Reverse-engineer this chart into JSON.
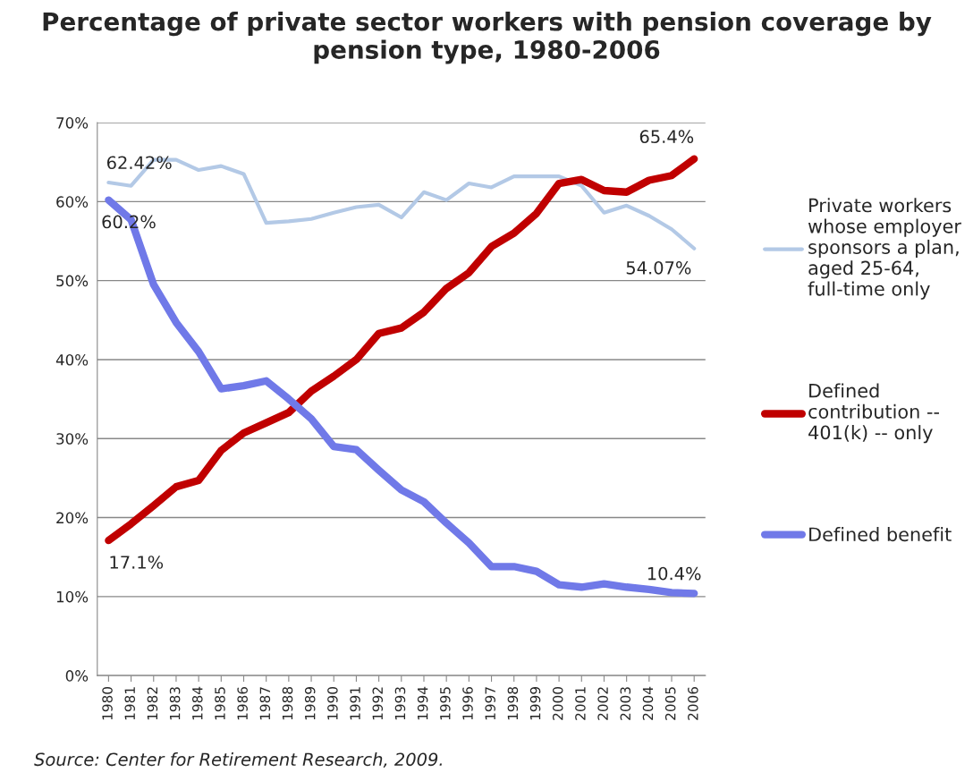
{
  "chart_data": {
    "type": "line",
    "title": "Percentage of private sector workers with pension coverage by pension type, 1980-2006",
    "categories": [
      "1980",
      "1981",
      "1982",
      "1983",
      "1984",
      "1985",
      "1986",
      "1987",
      "1988",
      "1989",
      "1990",
      "1991",
      "1992",
      "1993",
      "1994",
      "1995",
      "1996",
      "1997",
      "1998",
      "1999",
      "2000",
      "2001",
      "2002",
      "2003",
      "2004",
      "2005",
      "2006"
    ],
    "series": [
      {
        "name": "Private workers whose employer sponsors a plan, aged 25-64, full-time only",
        "color": "#b3c9e6",
        "values": [
          62.42,
          62.0,
          65.3,
          65.3,
          64.0,
          64.5,
          63.5,
          57.3,
          57.5,
          57.8,
          58.6,
          59.3,
          59.6,
          58.0,
          61.2,
          60.2,
          62.3,
          61.8,
          63.2,
          63.2,
          63.2,
          62.0,
          58.6,
          59.5,
          58.2,
          56.5,
          54.07
        ],
        "value_labels": [
          "62.42%",
          null,
          null,
          null,
          null,
          null,
          null,
          null,
          null,
          null,
          null,
          null,
          null,
          null,
          null,
          null,
          null,
          null,
          null,
          null,
          null,
          null,
          null,
          null,
          null,
          null,
          "54.07%"
        ]
      },
      {
        "name": "Defined contribution -- 401(k) -- only",
        "color": "#c00000",
        "values": [
          17.1,
          19.2,
          21.5,
          23.9,
          24.7,
          28.5,
          30.7,
          32.0,
          33.3,
          36.0,
          37.9,
          40.0,
          43.3,
          44.0,
          46.0,
          49.0,
          51.0,
          54.3,
          56.0,
          58.5,
          62.3,
          62.8,
          61.4,
          61.2,
          62.7,
          63.3,
          65.4
        ],
        "value_labels": [
          "17.1%",
          null,
          null,
          null,
          null,
          null,
          null,
          null,
          null,
          null,
          null,
          null,
          null,
          null,
          null,
          null,
          null,
          null,
          null,
          null,
          null,
          null,
          null,
          null,
          null,
          null,
          "65.4%"
        ]
      },
      {
        "name": "Defined benefit",
        "color": "#7079e8",
        "values": [
          60.2,
          57.7,
          49.5,
          44.7,
          41.0,
          36.3,
          36.7,
          37.3,
          35.0,
          32.5,
          29.0,
          28.6,
          26.0,
          23.5,
          22.0,
          19.3,
          16.8,
          13.8,
          13.8,
          13.2,
          11.5,
          11.2,
          11.6,
          11.2,
          10.9,
          10.5,
          10.4
        ],
        "value_labels": [
          "60.2%",
          null,
          null,
          null,
          null,
          null,
          null,
          null,
          null,
          null,
          null,
          null,
          null,
          null,
          null,
          null,
          null,
          null,
          null,
          null,
          null,
          null,
          null,
          null,
          null,
          null,
          "10.4%"
        ]
      }
    ],
    "ylim": [
      0,
      70
    ],
    "yticks": [
      {
        "value": 0,
        "label": "0%"
      },
      {
        "value": 10,
        "label": "10%"
      },
      {
        "value": 20,
        "label": "20%"
      },
      {
        "value": 30,
        "label": "30%"
      },
      {
        "value": 40,
        "label": "40%"
      },
      {
        "value": 50,
        "label": "50%"
      },
      {
        "value": 60,
        "label": "60%"
      },
      {
        "value": 70,
        "label": "70%"
      }
    ],
    "grid": "y",
    "legend": "right",
    "marker": "none",
    "line_style": "solid",
    "annotations": [
      "Source: Center for Retirement Research, 2009."
    ]
  }
}
